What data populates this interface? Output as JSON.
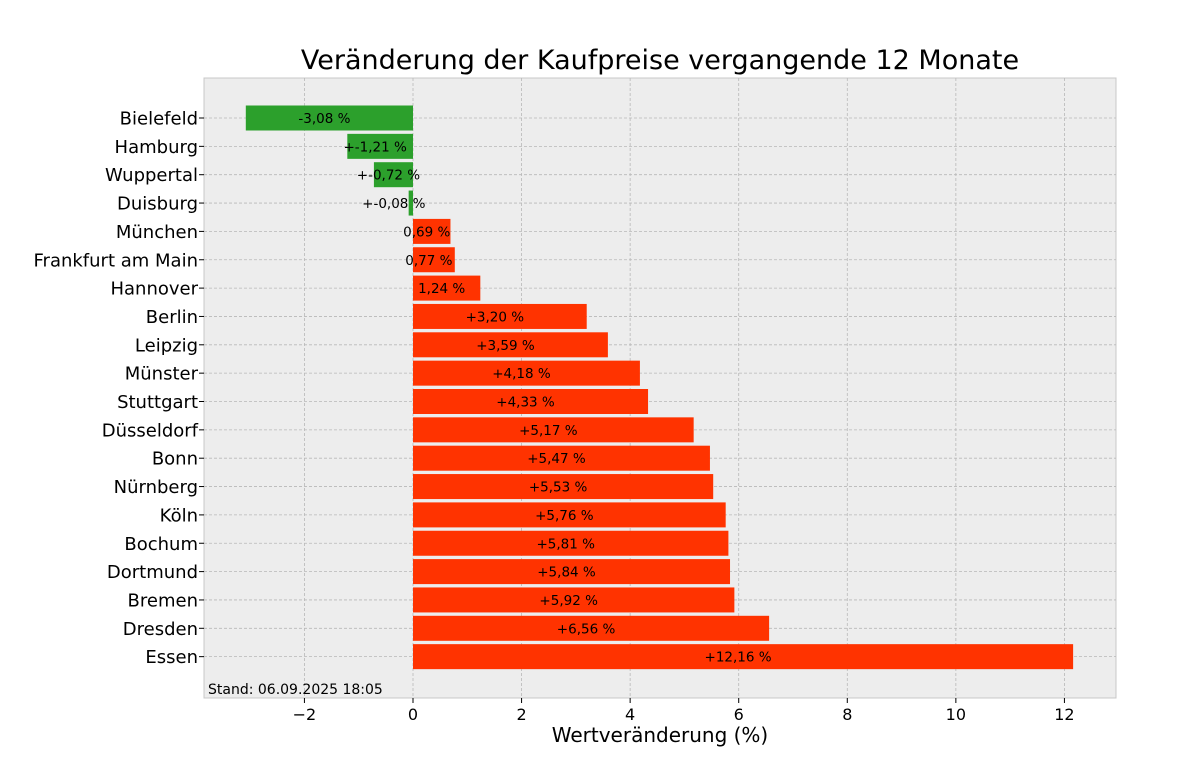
{
  "chart_data": {
    "type": "bar",
    "orientation": "horizontal",
    "title": "Veränderung der Kaufpreise vergangende 12 Monate",
    "xlabel": "Wertveränderung (%)",
    "ylabel": "",
    "xlim": [
      -3.85,
      12.95
    ],
    "xticks": [
      -2,
      0,
      2,
      4,
      6,
      8,
      10,
      12
    ],
    "xtick_labels": [
      "−2",
      "0",
      "2",
      "4",
      "6",
      "8",
      "10",
      "12"
    ],
    "grid": true,
    "legend": "none",
    "categories": [
      "Bielefeld",
      "Hamburg",
      "Wuppertal",
      "Duisburg",
      "München",
      "Frankfurt am Main",
      "Hannover",
      "Berlin",
      "Leipzig",
      "Münster",
      "Stuttgart",
      "Düsseldorf",
      "Bonn",
      "Nürnberg",
      "Köln",
      "Bochum",
      "Dortmund",
      "Bremen",
      "Dresden",
      "Essen"
    ],
    "values": [
      -3.08,
      -1.21,
      -0.72,
      -0.08,
      0.69,
      0.77,
      1.24,
      3.2,
      3.59,
      4.18,
      4.33,
      5.17,
      5.47,
      5.53,
      5.76,
      5.81,
      5.84,
      5.92,
      6.56,
      12.16
    ],
    "data_labels": [
      "-3,08 %",
      "+-1,21 %",
      "+-0,72 %",
      "+-0,08 %",
      "0,69 %",
      "0,77 %",
      "1,24 %",
      "+3,20 %",
      "+3,59 %",
      "+4,18 %",
      "+4,33 %",
      "+5,17 %",
      "+5,47 %",
      "+5,53 %",
      "+5,76 %",
      "+5,81 %",
      "+5,84 %",
      "+5,92 %",
      "+6,56 %",
      "+12,16 %"
    ],
    "bar_colors": [
      "#2ca02c",
      "#2ca02c",
      "#2ca02c",
      "#2ca02c",
      "#ff3300",
      "#ff3300",
      "#ff3300",
      "#ff3300",
      "#ff3300",
      "#ff3300",
      "#ff3300",
      "#ff3300",
      "#ff3300",
      "#ff3300",
      "#ff3300",
      "#ff3300",
      "#ff3300",
      "#ff3300",
      "#ff3300",
      "#ff3300"
    ],
    "annotation": "Stand: 06.09.2025 18:05"
  },
  "colors": {
    "negative": "#2ca02c",
    "positive": "#ff3300",
    "plot_background": "#ededed",
    "grid": "#b8b8b8"
  }
}
